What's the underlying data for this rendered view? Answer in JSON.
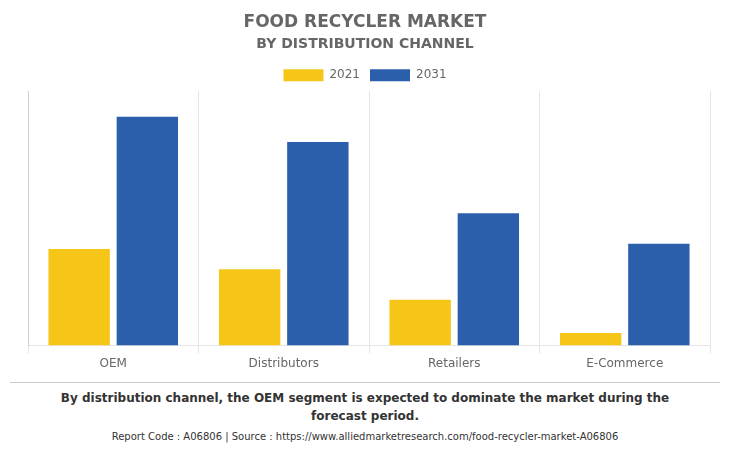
{
  "chart_data": {
    "type": "bar",
    "title": "FOOD RECYCLER MARKET",
    "subtitle": "BY DISTRIBUTION CHANNEL",
    "categories": [
      "OEM",
      "Distributors",
      "Retailers",
      "E-Commerce"
    ],
    "series": [
      {
        "name": "2021",
        "color": "#F5C518",
        "values": [
          38,
          30,
          18,
          5
        ]
      },
      {
        "name": "2031",
        "color": "#2B5EAB",
        "values": [
          90,
          80,
          52,
          40
        ]
      }
    ],
    "ylim": [
      0,
      100
    ],
    "grid": true,
    "legend": "top",
    "tick_labels": "x",
    "annotations": [
      "By distribution channel, the OEM segment is expected to dominate the market during the\nforecast period.",
      "Report Code : A06806  |  Source : https://www.alliedmarketresearch.com/food-recycler-market-A06806"
    ]
  }
}
